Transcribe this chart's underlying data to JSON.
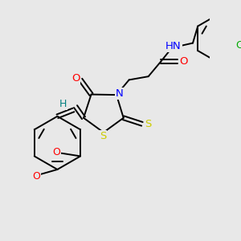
{
  "colors": {
    "C": "#000000",
    "N": "#0000ff",
    "O": "#ff0000",
    "S": "#cccc00",
    "Cl": "#00aa00",
    "H_label": "#008080",
    "bond": "#000000",
    "background": "#e8e8e8"
  },
  "figsize": [
    3.0,
    3.0
  ],
  "dpi": 100
}
